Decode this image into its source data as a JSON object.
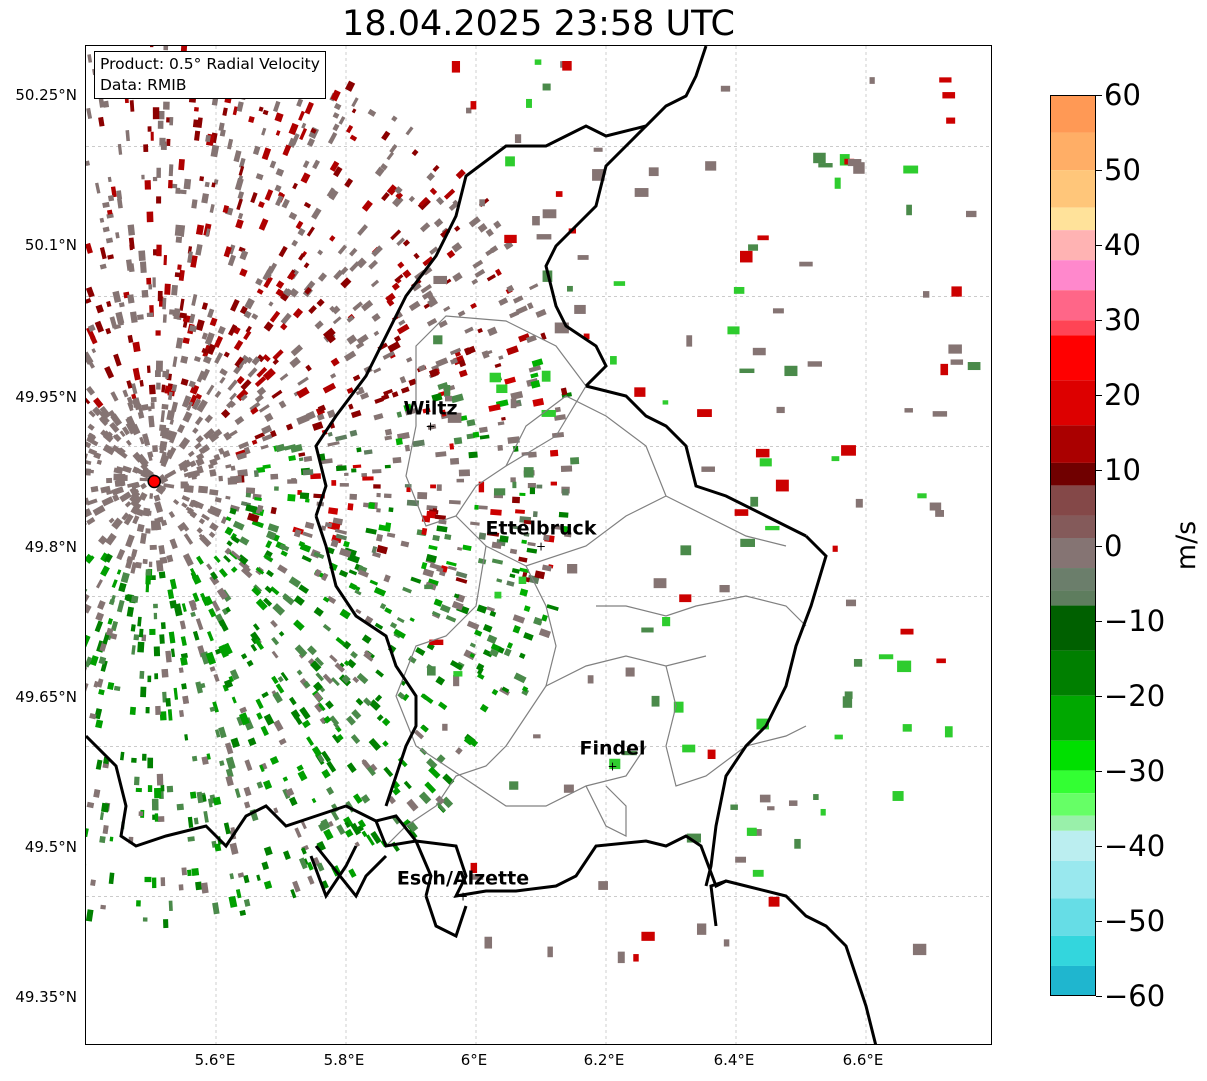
{
  "title": "18.04.2025 23:58 UTC",
  "info_box": {
    "product": "Product: 0.5° Radial Velocity",
    "data": "Data: RMIB"
  },
  "y_ticks": [
    "50.25°N",
    "50.1°N",
    "49.95°N",
    "49.8°N",
    "49.65°N",
    "49.5°N",
    "49.35°N"
  ],
  "x_ticks": [
    "5.6°E",
    "5.8°E",
    "6°E",
    "6.2°E",
    "6.4°E",
    "6.6°E"
  ],
  "colorbar": {
    "label": "m/s",
    "ticks": [
      "60",
      "50",
      "40",
      "30",
      "20",
      "10",
      "0",
      "−10",
      "−20",
      "−30",
      "−40",
      "−50",
      "−60"
    ],
    "range": [
      -60,
      60
    ]
  },
  "cities": [
    {
      "name": "Wiltz",
      "lon": 5.93,
      "lat": 49.97
    },
    {
      "name": "Ettelbruck",
      "lon": 6.1,
      "lat": 49.85
    },
    {
      "name": "Findel",
      "lon": 6.21,
      "lat": 49.63
    },
    {
      "name": "Esch/Alzette",
      "lon": 5.98,
      "lat": 49.5
    }
  ],
  "radar_site": {
    "lon": 5.505,
    "lat": 49.915
  },
  "colors": {
    "border": "#000000",
    "cantons": "#808080",
    "radar_marker": "#ff0000",
    "near_zero": "#857473",
    "negative": "#4a8a4a",
    "positive": "#8b0000"
  }
}
